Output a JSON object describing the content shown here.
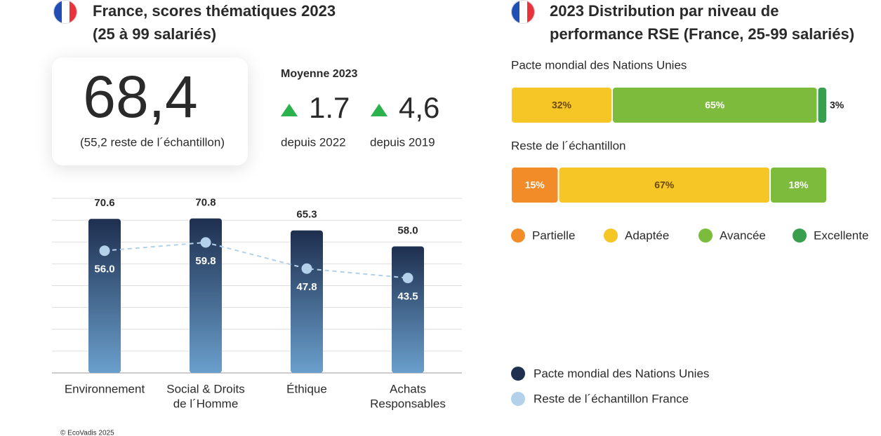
{
  "kpi": {
    "score": "68,4",
    "sample_note": "(55,2 reste de l´échantillon)",
    "average_label": "Moyenne 2023",
    "changes": [
      {
        "value": "1.7",
        "since": "depuis 2022"
      },
      {
        "value": "4,6",
        "since": "depuis 2019"
      }
    ]
  },
  "chart_data": [
    {
      "type": "bar",
      "title": [
        "France, scores thématiques 2023",
        "(25 à 99 salariés)"
      ],
      "categories": [
        [
          "Environnement"
        ],
        [
          "Social & Droits",
          "de l´Homme"
        ],
        [
          "Éthique"
        ],
        [
          "Achats",
          "Responsables"
        ]
      ],
      "series": [
        {
          "name": "Pacte mondial des Nations Unies",
          "color": "#1e2f4f",
          "values": [
            70.6,
            70.8,
            65.3,
            58.0
          ],
          "value_labels": [
            "70.6",
            "70.8",
            "65.3",
            "58.0"
          ]
        },
        {
          "name": "Reste de l´échantillon France",
          "color": "#b3d1ea",
          "type": "line",
          "values": [
            56.0,
            59.8,
            47.8,
            43.5
          ],
          "value_labels": [
            "56.0",
            "59.8",
            "47.8",
            "43.5"
          ]
        }
      ],
      "ylim": [
        0,
        80
      ],
      "yticks": [
        0,
        10,
        20,
        30,
        40,
        50,
        60,
        70,
        80
      ],
      "grid": true
    },
    {
      "type": "stacked-bar-horizontal",
      "title": [
        "2023 Distribution par niveau de",
        "performance RSE (France, 25-99 salariés)"
      ],
      "categories": [
        "Pacte mondial des Nations Unies",
        "Reste de l´échantillon"
      ],
      "series": [
        {
          "name": "Partielle",
          "color": "#f28c28",
          "values": [
            0,
            15
          ],
          "value_labels": [
            null,
            "15%"
          ]
        },
        {
          "name": "Adaptée",
          "color": "#f6c526",
          "values": [
            32,
            67
          ],
          "value_labels": [
            "32%",
            "67%"
          ]
        },
        {
          "name": "Avancée",
          "color": "#7dbb3c",
          "values": [
            65,
            18
          ],
          "value_labels": [
            "65%",
            "18%"
          ]
        },
        {
          "name": "Excellente",
          "color": "#3a9e4f",
          "values": [
            3,
            0
          ],
          "value_labels": [
            "3%",
            null
          ]
        }
      ],
      "xlim": [
        0,
        100
      ]
    }
  ],
  "footer": "© EcoVadis 2025"
}
